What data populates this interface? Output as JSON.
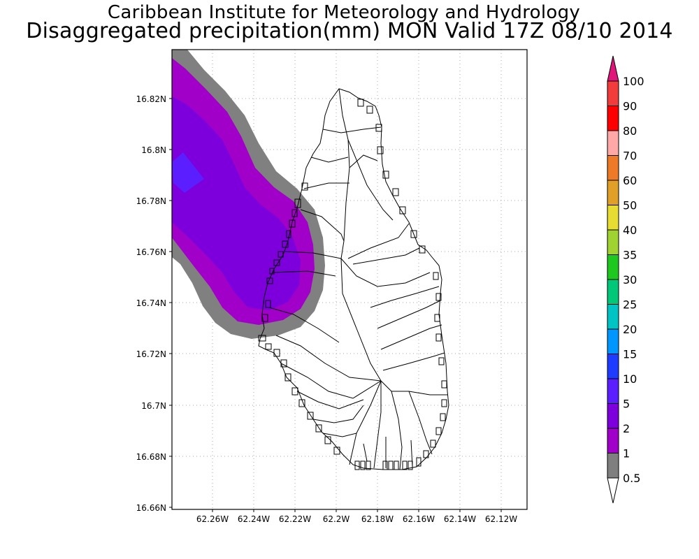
{
  "header": {
    "line1": "Caribbean Institute for Meteorology and Hydrology",
    "line2": "Disaggregated precipitation(mm) MON Valid 17Z 08/10 2014"
  },
  "axes": {
    "lat_labels": [
      "16.82N",
      "16.8N",
      "16.78N",
      "16.76N",
      "16.74N",
      "16.72N",
      "16.7N",
      "16.68N",
      "16.66N"
    ],
    "lon_labels": [
      "62.26W",
      "62.24W",
      "62.22W",
      "62.2W",
      "62.18W",
      "62.16W",
      "62.14W",
      "62.12W"
    ]
  },
  "colorbar": {
    "labels": [
      "100",
      "90",
      "80",
      "70",
      "60",
      "50",
      "40",
      "35",
      "30",
      "25",
      "20",
      "15",
      "10",
      "5",
      "2",
      "1",
      "0.5"
    ],
    "colors": [
      "#e0157a",
      "#f23c3c",
      "#ff0000",
      "#ffa8a8",
      "#ee7a28",
      "#e0a028",
      "#e6dc32",
      "#a0d232",
      "#1ec81e",
      "#00c878",
      "#00c3c3",
      "#0096ff",
      "#1e3cff",
      "#5a1eff",
      "#7d00dc",
      "#a000c8",
      "#7f7f7f"
    ]
  },
  "map_colors": {
    "gray": "#808080",
    "magenta": "#a000c8",
    "purple": "#7d00dc",
    "blue": "#5a1eff"
  }
}
